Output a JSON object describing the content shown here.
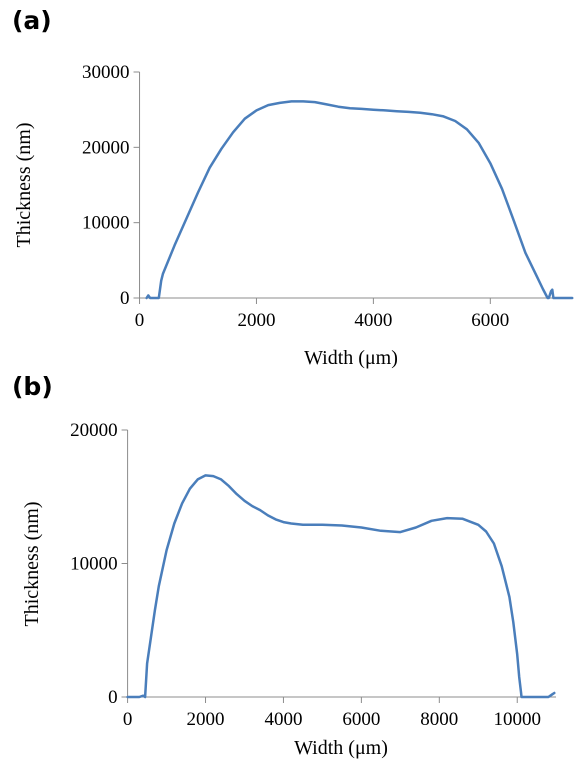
{
  "chart_data": [
    {
      "panel_label": "(a)",
      "type": "line",
      "xlabel": "Width (μm)",
      "ylabel": "Thickness (nm)",
      "xlim": [
        -300,
        7500
      ],
      "ylim": [
        0,
        30000
      ],
      "xticks": [
        0,
        2000,
        4000,
        6000
      ],
      "yticks": [
        0,
        10000,
        20000,
        30000
      ],
      "grid": false,
      "line_color": "#4a7ebb",
      "series": [
        {
          "x": [
            120,
            150,
            180,
            330,
            370,
            400,
            600,
            800,
            1000,
            1200,
            1400,
            1600,
            1800,
            2000,
            2200,
            2400,
            2600,
            2800,
            3000,
            3200,
            3400,
            3600,
            3800,
            4000,
            4200,
            4400,
            4600,
            4800,
            5000,
            5200,
            5400,
            5600,
            5800,
            6000,
            6200,
            6400,
            6600,
            6800,
            6900,
            6980,
            7000,
            7040,
            7060,
            7080,
            7200,
            7400
          ],
          "y": [
            0,
            350,
            0,
            0,
            2300,
            3200,
            7000,
            10500,
            14000,
            17300,
            19800,
            22000,
            23800,
            24900,
            25600,
            25900,
            26100,
            26100,
            26000,
            25700,
            25400,
            25200,
            25100,
            25000,
            24900,
            24800,
            24700,
            24600,
            24400,
            24100,
            23500,
            22400,
            20600,
            17900,
            14500,
            10300,
            6000,
            2800,
            1200,
            0,
            0,
            900,
            1100,
            0,
            0,
            0
          ]
        }
      ]
    },
    {
      "panel_label": "(b)",
      "type": "line",
      "xlabel": "Width (μm)",
      "ylabel": "Thickness (nm)",
      "xlim": [
        -400,
        11200
      ],
      "ylim": [
        0,
        20000
      ],
      "xticks": [
        0,
        2000,
        4000,
        6000,
        8000,
        10000
      ],
      "yticks": [
        0,
        10000,
        20000
      ],
      "grid": false,
      "line_color": "#4a7ebb",
      "series": [
        {
          "x": [
            0,
            300,
            400,
            450,
            500,
            600,
            700,
            800,
            1000,
            1200,
            1400,
            1600,
            1800,
            2000,
            2200,
            2400,
            2600,
            2800,
            3000,
            3200,
            3400,
            3600,
            3800,
            4000,
            4200,
            4500,
            5000,
            5500,
            6000,
            6500,
            7000,
            7400,
            7800,
            8200,
            8600,
            9000,
            9200,
            9400,
            9600,
            9800,
            9900,
            10000,
            10050,
            10100,
            10110,
            10800,
            10900,
            10950
          ],
          "y": [
            0,
            0,
            100,
            0,
            2500,
            4500,
            6500,
            8300,
            11000,
            13000,
            14500,
            15600,
            16300,
            16600,
            16550,
            16300,
            15800,
            15200,
            14700,
            14300,
            14000,
            13600,
            13300,
            13100,
            13000,
            12900,
            12900,
            12850,
            12700,
            12450,
            12350,
            12700,
            13200,
            13400,
            13350,
            12900,
            12400,
            11500,
            9800,
            7500,
            5600,
            3200,
            1500,
            300,
            0,
            0,
            200,
            300
          ]
        }
      ]
    }
  ]
}
